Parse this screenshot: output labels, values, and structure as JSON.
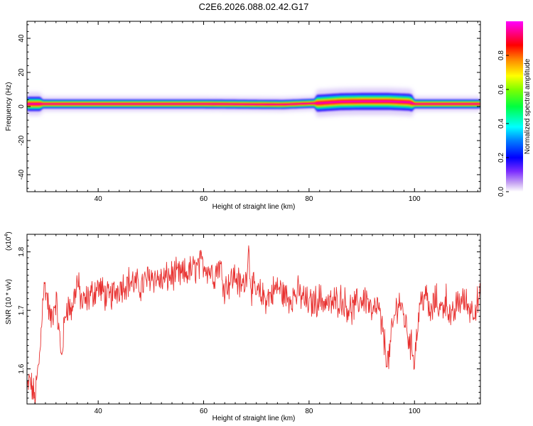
{
  "title": "C2E6.2026.088.02.42.G17",
  "chart_data": [
    {
      "type": "heatmap",
      "panel": "spectrogram",
      "xlabel": "Height of straight line (km)",
      "ylabel": "Frequency (Hz)",
      "xlim": [
        26.5,
        112.5
      ],
      "ylim": [
        -50,
        50
      ],
      "xticks": [
        40,
        60,
        80,
        100
      ],
      "yticks": [
        40,
        20,
        0,
        -20,
        -40
      ],
      "ridge_frequency_hz": [
        {
          "x": 27,
          "f": 1.5
        },
        {
          "x": 40,
          "f": 1.5
        },
        {
          "x": 60,
          "f": 1.5
        },
        {
          "x": 75,
          "f": 1.2
        },
        {
          "x": 82,
          "f": 2.0
        },
        {
          "x": 86,
          "f": 2.8
        },
        {
          "x": 90,
          "f": 3.0
        },
        {
          "x": 95,
          "f": 3.0
        },
        {
          "x": 99,
          "f": 2.5
        },
        {
          "x": 100,
          "f": 1.5
        },
        {
          "x": 112,
          "f": 1.5
        }
      ],
      "colorbar": {
        "label": "Normalized spectral amplitude",
        "range": [
          0,
          1
        ],
        "ticks": [
          "0.0",
          "0.2",
          "0.4",
          "0.6",
          "0.8"
        ]
      }
    },
    {
      "type": "line",
      "panel": "snr",
      "xlabel": "Height of straight line (km)",
      "ylabel": "SNR (10 * v/v)",
      "scale_label": "(x10",
      "scale_exponent": "4",
      "xlim": [
        26.5,
        112.5
      ],
      "ylim": [
        1.54,
        1.83
      ],
      "xticks": [
        40,
        60,
        80,
        100
      ],
      "yticks": [
        "1.6",
        "1.7",
        "1.8"
      ],
      "color": "#e8302f",
      "series": {
        "x": [
          26.5,
          27,
          28,
          29,
          29.5,
          30,
          31,
          32,
          33,
          34,
          35,
          36,
          37,
          38,
          39,
          40,
          42,
          44,
          46,
          48,
          50,
          52,
          54,
          56,
          58,
          60,
          62,
          63,
          64,
          65,
          66,
          67,
          68,
          68.5,
          69,
          70,
          72,
          74,
          76,
          78,
          80,
          82,
          84,
          86,
          88,
          90,
          91,
          92,
          93,
          94,
          95,
          96,
          97,
          98,
          99,
          100,
          101,
          102,
          103,
          104,
          105,
          106,
          107,
          108,
          109,
          110,
          111,
          112.5
        ],
        "y": [
          1.56,
          1.58,
          1.55,
          1.63,
          1.73,
          1.74,
          1.68,
          1.72,
          1.62,
          1.71,
          1.7,
          1.75,
          1.71,
          1.72,
          1.73,
          1.74,
          1.72,
          1.74,
          1.75,
          1.74,
          1.76,
          1.75,
          1.76,
          1.76,
          1.77,
          1.78,
          1.76,
          1.78,
          1.74,
          1.75,
          1.76,
          1.74,
          1.75,
          1.81,
          1.74,
          1.73,
          1.72,
          1.74,
          1.72,
          1.73,
          1.71,
          1.72,
          1.71,
          1.72,
          1.7,
          1.72,
          1.72,
          1.69,
          1.71,
          1.66,
          1.61,
          1.68,
          1.72,
          1.69,
          1.65,
          1.62,
          1.71,
          1.73,
          1.69,
          1.72,
          1.7,
          1.72,
          1.68,
          1.71,
          1.72,
          1.71,
          1.7,
          1.72
        ]
      }
    }
  ]
}
